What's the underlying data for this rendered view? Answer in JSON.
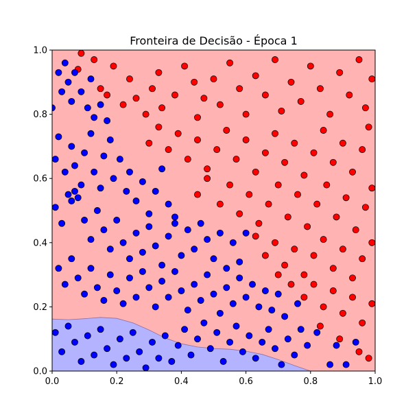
{
  "chart_data": {
    "type": "scatter",
    "title": "Fronteira de Decisão - Época 1",
    "xlabel": "",
    "ylabel": "",
    "xlim": [
      0,
      1
    ],
    "ylim": [
      0,
      1
    ],
    "xticks": [
      "0.0",
      "0.2",
      "0.4",
      "0.6",
      "0.8",
      "1.0"
    ],
    "yticks": [
      "0.0",
      "0.2",
      "0.4",
      "0.6",
      "0.8",
      "1.0"
    ],
    "grid": false,
    "legend": "none",
    "regions": [
      {
        "class": "red",
        "color": "#ffb3b3"
      },
      {
        "class": "blue",
        "color": "#b3b3ff"
      }
    ],
    "boundary": [
      [
        0.0,
        0.162
      ],
      [
        0.05,
        0.16
      ],
      [
        0.1,
        0.163
      ],
      [
        0.15,
        0.167
      ],
      [
        0.2,
        0.164
      ],
      [
        0.25,
        0.15
      ],
      [
        0.3,
        0.128
      ],
      [
        0.35,
        0.103
      ],
      [
        0.4,
        0.085
      ],
      [
        0.45,
        0.075
      ],
      [
        0.5,
        0.07
      ],
      [
        0.55,
        0.068
      ],
      [
        0.6,
        0.062
      ],
      [
        0.65,
        0.052
      ],
      [
        0.7,
        0.036
      ],
      [
        0.75,
        0.017
      ],
      [
        0.8,
        0.0
      ]
    ],
    "series": [
      {
        "color": "#ff0000",
        "points": [
          [
            0.08,
            0.94
          ],
          [
            0.09,
            0.99
          ],
          [
            0.13,
            0.97
          ],
          [
            0.15,
            0.88
          ],
          [
            0.17,
            0.86
          ],
          [
            0.19,
            0.95
          ],
          [
            0.22,
            0.83
          ],
          [
            0.24,
            0.91
          ],
          [
            0.26,
            0.85
          ],
          [
            0.29,
            0.8
          ],
          [
            0.31,
            0.88
          ],
          [
            0.34,
            0.82
          ],
          [
            0.33,
            0.93
          ],
          [
            0.38,
            0.86
          ],
          [
            0.41,
            0.95
          ],
          [
            0.44,
            0.9
          ],
          [
            0.47,
            0.85
          ],
          [
            0.45,
            0.79
          ],
          [
            0.5,
            0.91
          ],
          [
            0.52,
            0.83
          ],
          [
            0.55,
            0.96
          ],
          [
            0.58,
            0.88
          ],
          [
            0.6,
            0.8
          ],
          [
            0.63,
            0.92
          ],
          [
            0.66,
            0.86
          ],
          [
            0.69,
            0.97
          ],
          [
            0.71,
            0.81
          ],
          [
            0.74,
            0.9
          ],
          [
            0.77,
            0.84
          ],
          [
            0.8,
            0.95
          ],
          [
            0.83,
            0.88
          ],
          [
            0.86,
            0.8
          ],
          [
            0.89,
            0.93
          ],
          [
            0.92,
            0.86
          ],
          [
            0.95,
            0.97
          ],
          [
            0.97,
            0.82
          ],
          [
            0.99,
            0.91
          ],
          [
            0.3,
            0.71
          ],
          [
            0.33,
            0.76
          ],
          [
            0.36,
            0.69
          ],
          [
            0.39,
            0.74
          ],
          [
            0.42,
            0.66
          ],
          [
            0.45,
            0.72
          ],
          [
            0.48,
            0.63
          ],
          [
            0.51,
            0.69
          ],
          [
            0.54,
            0.75
          ],
          [
            0.57,
            0.66
          ],
          [
            0.6,
            0.72
          ],
          [
            0.63,
            0.62
          ],
          [
            0.66,
            0.68
          ],
          [
            0.69,
            0.74
          ],
          [
            0.72,
            0.65
          ],
          [
            0.75,
            0.71
          ],
          [
            0.78,
            0.61
          ],
          [
            0.81,
            0.68
          ],
          [
            0.84,
            0.75
          ],
          [
            0.87,
            0.65
          ],
          [
            0.9,
            0.71
          ],
          [
            0.93,
            0.62
          ],
          [
            0.96,
            0.69
          ],
          [
            0.98,
            0.76
          ],
          [
            0.45,
            0.55
          ],
          [
            0.48,
            0.6
          ],
          [
            0.52,
            0.52
          ],
          [
            0.55,
            0.58
          ],
          [
            0.58,
            0.49
          ],
          [
            0.61,
            0.55
          ],
          [
            0.64,
            0.46
          ],
          [
            0.67,
            0.52
          ],
          [
            0.7,
            0.58
          ],
          [
            0.73,
            0.48
          ],
          [
            0.76,
            0.55
          ],
          [
            0.79,
            0.45
          ],
          [
            0.82,
            0.52
          ],
          [
            0.85,
            0.58
          ],
          [
            0.88,
            0.48
          ],
          [
            0.91,
            0.54
          ],
          [
            0.94,
            0.44
          ],
          [
            0.97,
            0.51
          ],
          [
            0.99,
            0.57
          ],
          [
            0.63,
            0.42
          ],
          [
            0.66,
            0.36
          ],
          [
            0.69,
            0.4
          ],
          [
            0.72,
            0.33
          ],
          [
            0.75,
            0.38
          ],
          [
            0.78,
            0.3
          ],
          [
            0.81,
            0.36
          ],
          [
            0.84,
            0.41
          ],
          [
            0.87,
            0.32
          ],
          [
            0.9,
            0.38
          ],
          [
            0.93,
            0.29
          ],
          [
            0.96,
            0.35
          ],
          [
            0.99,
            0.4
          ],
          [
            0.78,
            0.23
          ],
          [
            0.81,
            0.27
          ],
          [
            0.84,
            0.2
          ],
          [
            0.87,
            0.25
          ],
          [
            0.9,
            0.18
          ],
          [
            0.93,
            0.23
          ],
          [
            0.96,
            0.15
          ],
          [
            0.99,
            0.21
          ],
          [
            0.83,
            0.14
          ],
          [
            0.89,
            0.1
          ],
          [
            0.95,
            0.06
          ],
          [
            0.98,
            0.04
          ],
          [
            0.74,
            0.27
          ],
          [
            0.7,
            0.3
          ]
        ]
      },
      {
        "color": "#0000ff",
        "points": [
          [
            0.0,
            0.82
          ],
          [
            0.02,
            0.93
          ],
          [
            0.03,
            0.87
          ],
          [
            0.04,
            0.96
          ],
          [
            0.05,
            0.9
          ],
          [
            0.06,
            0.84
          ],
          [
            0.07,
            0.93
          ],
          [
            0.09,
            0.87
          ],
          [
            0.11,
            0.82
          ],
          [
            0.12,
            0.91
          ],
          [
            0.13,
            0.79
          ],
          [
            0.15,
            0.83
          ],
          [
            0.17,
            0.78
          ],
          [
            0.01,
            0.66
          ],
          [
            0.02,
            0.73
          ],
          [
            0.04,
            0.62
          ],
          [
            0.06,
            0.7
          ],
          [
            0.07,
            0.64
          ],
          [
            0.09,
            0.58
          ],
          [
            0.1,
            0.68
          ],
          [
            0.12,
            0.74
          ],
          [
            0.13,
            0.62
          ],
          [
            0.15,
            0.57
          ],
          [
            0.16,
            0.67
          ],
          [
            0.18,
            0.72
          ],
          [
            0.19,
            0.6
          ],
          [
            0.21,
            0.66
          ],
          [
            0.23,
            0.56
          ],
          [
            0.24,
            0.62
          ],
          [
            0.26,
            0.53
          ],
          [
            0.28,
            0.59
          ],
          [
            0.3,
            0.49
          ],
          [
            0.32,
            0.56
          ],
          [
            0.34,
            0.63
          ],
          [
            0.36,
            0.52
          ],
          [
            0.38,
            0.46
          ],
          [
            0.01,
            0.51
          ],
          [
            0.03,
            0.46
          ],
          [
            0.05,
            0.55
          ],
          [
            0.06,
            0.53
          ],
          [
            0.07,
            0.56
          ],
          [
            0.08,
            0.54
          ],
          [
            0.1,
            0.47
          ],
          [
            0.12,
            0.41
          ],
          [
            0.14,
            0.5
          ],
          [
            0.16,
            0.44
          ],
          [
            0.18,
            0.38
          ],
          [
            0.2,
            0.47
          ],
          [
            0.22,
            0.4
          ],
          [
            0.24,
            0.35
          ],
          [
            0.26,
            0.43
          ],
          [
            0.28,
            0.37
          ],
          [
            0.3,
            0.45
          ],
          [
            0.32,
            0.39
          ],
          [
            0.34,
            0.33
          ],
          [
            0.36,
            0.42
          ],
          [
            0.38,
            0.48
          ],
          [
            0.4,
            0.36
          ],
          [
            0.42,
            0.44
          ],
          [
            0.44,
            0.38
          ],
          [
            0.46,
            0.46
          ],
          [
            0.48,
            0.41
          ],
          [
            0.5,
            0.35
          ],
          [
            0.52,
            0.43
          ],
          [
            0.54,
            0.32
          ],
          [
            0.56,
            0.4
          ],
          [
            0.58,
            0.34
          ],
          [
            0.6,
            0.43
          ],
          [
            0.02,
            0.32
          ],
          [
            0.04,
            0.27
          ],
          [
            0.06,
            0.35
          ],
          [
            0.08,
            0.29
          ],
          [
            0.1,
            0.24
          ],
          [
            0.12,
            0.32
          ],
          [
            0.14,
            0.26
          ],
          [
            0.16,
            0.22
          ],
          [
            0.18,
            0.3
          ],
          [
            0.2,
            0.25
          ],
          [
            0.22,
            0.21
          ],
          [
            0.24,
            0.29
          ],
          [
            0.26,
            0.23
          ],
          [
            0.28,
            0.31
          ],
          [
            0.3,
            0.26
          ],
          [
            0.32,
            0.2
          ],
          [
            0.34,
            0.28
          ],
          [
            0.36,
            0.23
          ],
          [
            0.38,
            0.31
          ],
          [
            0.4,
            0.25
          ],
          [
            0.42,
            0.19
          ],
          [
            0.44,
            0.27
          ],
          [
            0.46,
            0.22
          ],
          [
            0.48,
            0.3
          ],
          [
            0.5,
            0.24
          ],
          [
            0.52,
            0.18
          ],
          [
            0.54,
            0.26
          ],
          [
            0.56,
            0.21
          ],
          [
            0.58,
            0.29
          ],
          [
            0.6,
            0.23
          ],
          [
            0.62,
            0.27
          ],
          [
            0.64,
            0.2
          ],
          [
            0.66,
            0.25
          ],
          [
            0.68,
            0.19
          ],
          [
            0.7,
            0.24
          ],
          [
            0.72,
            0.17
          ],
          [
            0.76,
            0.21
          ],
          [
            0.01,
            0.12
          ],
          [
            0.03,
            0.06
          ],
          [
            0.05,
            0.14
          ],
          [
            0.07,
            0.09
          ],
          [
            0.09,
            0.03
          ],
          [
            0.11,
            0.11
          ],
          [
            0.13,
            0.05
          ],
          [
            0.15,
            0.13
          ],
          [
            0.17,
            0.07
          ],
          [
            0.19,
            0.02
          ],
          [
            0.21,
            0.1
          ],
          [
            0.23,
            0.04
          ],
          [
            0.25,
            0.12
          ],
          [
            0.27,
            0.06
          ],
          [
            0.29,
            0.01
          ],
          [
            0.31,
            0.09
          ],
          [
            0.33,
            0.04
          ],
          [
            0.35,
            0.11
          ],
          [
            0.37,
            0.03
          ],
          [
            0.39,
            0.08
          ],
          [
            0.41,
            0.13
          ],
          [
            0.43,
            0.05
          ],
          [
            0.45,
            0.1
          ],
          [
            0.47,
            0.15
          ],
          [
            0.49,
            0.07
          ],
          [
            0.51,
            0.12
          ],
          [
            0.53,
            0.03
          ],
          [
            0.55,
            0.09
          ],
          [
            0.57,
            0.14
          ],
          [
            0.59,
            0.06
          ],
          [
            0.61,
            0.11
          ],
          [
            0.63,
            0.04
          ],
          [
            0.65,
            0.09
          ],
          [
            0.67,
            0.13
          ],
          [
            0.69,
            0.07
          ],
          [
            0.71,
            0.02
          ],
          [
            0.73,
            0.1
          ],
          [
            0.75,
            0.05
          ],
          [
            0.77,
            0.13
          ],
          [
            0.79,
            0.08
          ],
          [
            0.82,
            0.12
          ],
          [
            0.86,
            0.02
          ],
          [
            0.88,
            0.08
          ],
          [
            0.91,
            0.02
          ],
          [
            0.94,
            0.09
          ]
        ]
      }
    ]
  }
}
